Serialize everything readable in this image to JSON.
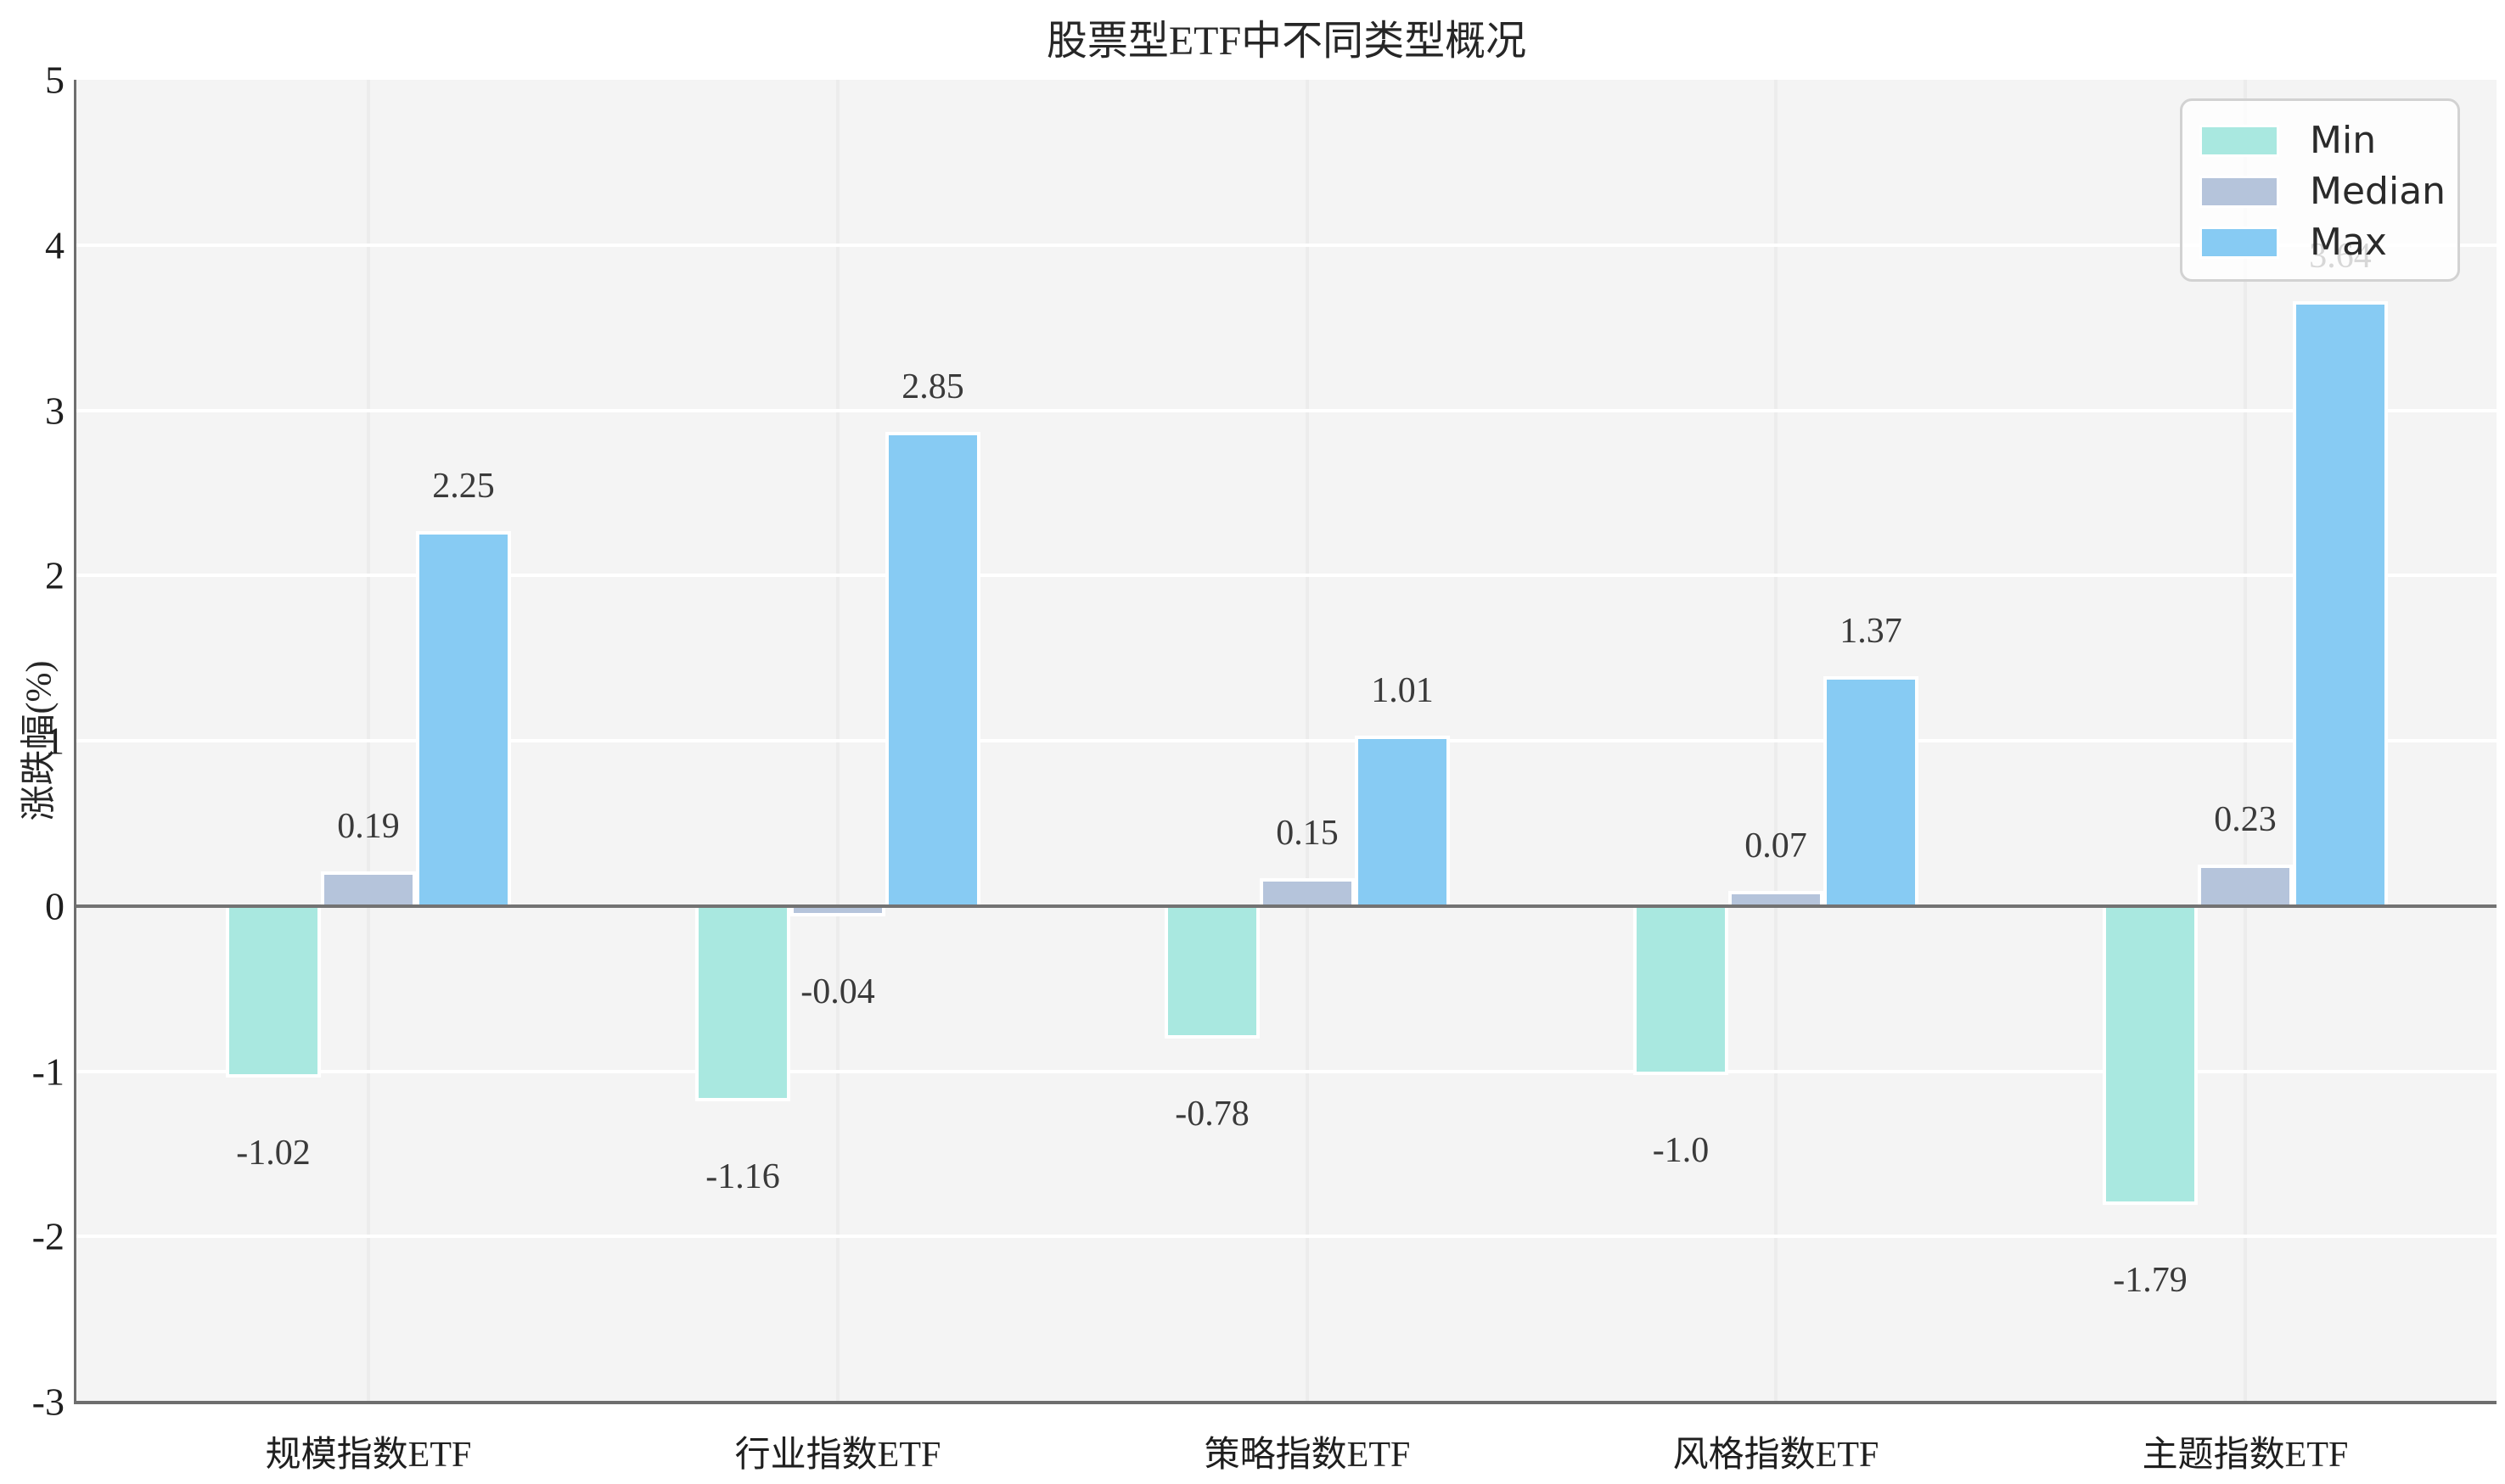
{
  "chart_data": {
    "type": "bar",
    "title": "股票型ETF中不同类型概况",
    "ylabel": "涨跌幅(%)",
    "xlabel": "",
    "categories": [
      "规模指数ETF",
      "行业指数ETF",
      "策略指数ETF",
      "风格指数ETF",
      "主题指数ETF"
    ],
    "series": [
      {
        "name": "Min",
        "color": "#a9e8e0",
        "values": [
          -1.02,
          -1.16,
          -0.78,
          -1.0,
          -1.79
        ]
      },
      {
        "name": "Median",
        "color": "#b5c4db",
        "values": [
          0.19,
          -0.04,
          0.15,
          0.07,
          0.23
        ]
      },
      {
        "name": "Max",
        "color": "#87cbf3",
        "values": [
          2.25,
          2.85,
          1.01,
          1.37,
          3.64
        ]
      }
    ],
    "value_labels": {
      "Min": [
        "-1.02",
        "-1.16",
        "-0.78",
        "-1.0",
        "-1.79"
      ],
      "Median": [
        "0.19",
        "-0.04",
        "0.15",
        "0.07",
        "0.23"
      ],
      "Max": [
        "2.25",
        "2.85",
        "1.01",
        "1.37",
        "3.64"
      ]
    },
    "ylim": [
      -3,
      5
    ],
    "yticks": [
      "5",
      "4",
      "3",
      "2",
      "1",
      "0",
      "-1",
      "-2",
      "-3"
    ],
    "grid": true,
    "legend": {
      "position": "upper right",
      "labels": [
        "Min",
        "Median",
        "Max"
      ]
    },
    "colors": {
      "plot_background": "#f4f4f4",
      "horizontal_grid": "#ffffff",
      "vertical_grid": "#ececec",
      "zero_line": "#737373",
      "spine": "#6e6e6e",
      "value_label_text": "#3a3a3a",
      "tick_text": "#1f1f1f"
    }
  }
}
